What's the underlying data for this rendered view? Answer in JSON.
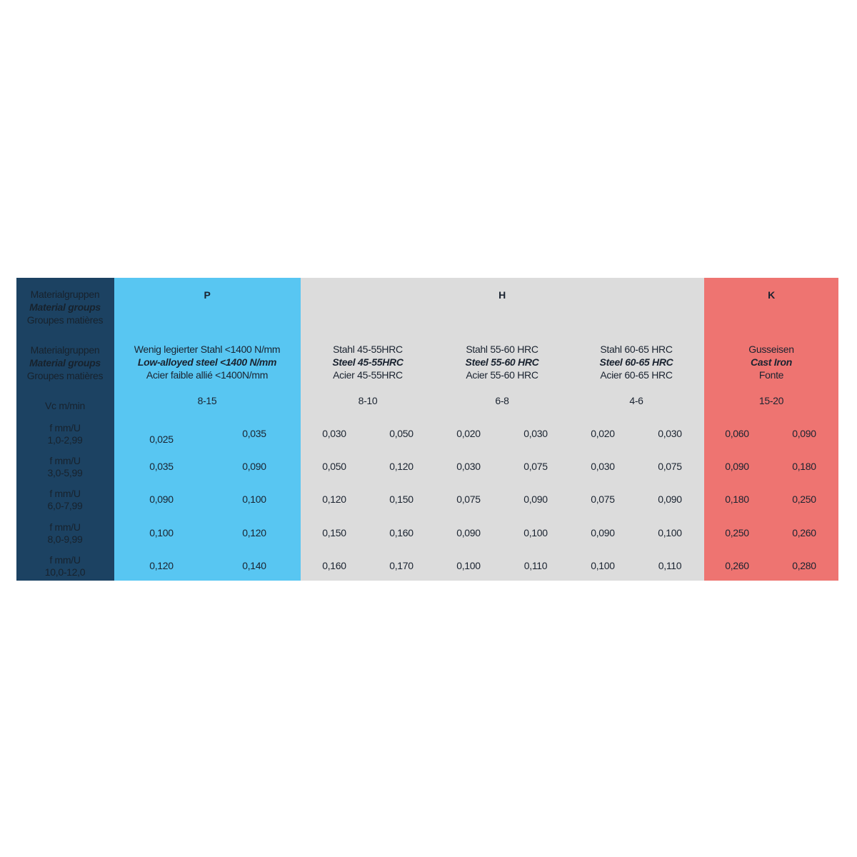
{
  "colors": {
    "label_column": "#1c4262",
    "P": "#58c6f2",
    "H": "#dcdcdc",
    "K": "#ee7471"
  },
  "labels": {
    "material_groups": [
      "Materialgruppen",
      "Material groups",
      "Groupes matières"
    ],
    "vc": "Vc m/min",
    "feed_rows": [
      {
        "unit": "f mm/U",
        "range": "1,0-2,99"
      },
      {
        "unit": "f mm/U",
        "range": "3,0-5,99"
      },
      {
        "unit": "f mm/U",
        "range": "6,0-7,99"
      },
      {
        "unit": "f mm/U",
        "range": "8,0-9,99"
      },
      {
        "unit": "f mm/U",
        "range": "10,0-12,0"
      }
    ]
  },
  "groups": [
    {
      "code": "P",
      "de": "Wenig legierter Stahl <1400 N/mm",
      "en": "Low-alloyed steel  <1400 N/mm",
      "fr": "Acier faible allié <1400N/mm",
      "vc": "8-15",
      "values": [
        [
          "0,025",
          "0,035"
        ],
        [
          "0,035",
          "0,090"
        ],
        [
          "0,090",
          "0,100"
        ],
        [
          "0,100",
          "0,120"
        ],
        [
          "0,120",
          "0,140"
        ]
      ]
    },
    {
      "code": "H",
      "de": "Stahl 45-55HRC",
      "en": "Steel 45-55HRC",
      "fr": "Acier 45-55HRC",
      "vc": "8-10",
      "values": [
        [
          "0,030",
          "0,050"
        ],
        [
          "0,050",
          "0,120"
        ],
        [
          "0,120",
          "0,150"
        ],
        [
          "0,150",
          "0,160"
        ],
        [
          "0,160",
          "0,170"
        ]
      ]
    },
    {
      "code": "",
      "de": "Stahl 55-60 HRC",
      "en": "Steel 55-60 HRC",
      "fr": "Acier 55-60  HRC",
      "vc": "6-8",
      "values": [
        [
          "0,020",
          "0,030"
        ],
        [
          "0,030",
          "0,075"
        ],
        [
          "0,075",
          "0,090"
        ],
        [
          "0,090",
          "0,100"
        ],
        [
          "0,100",
          "0,110"
        ]
      ]
    },
    {
      "code": "",
      "de": "Stahl 60-65 HRC",
      "en": "Steel 60-65 HRC",
      "fr": "Acier 60-65  HRC",
      "vc": "4-6",
      "values": [
        [
          "0,020",
          "0,030"
        ],
        [
          "0,030",
          "0,075"
        ],
        [
          "0,075",
          "0,090"
        ],
        [
          "0,090",
          "0,100"
        ],
        [
          "0,100",
          "0,110"
        ]
      ]
    },
    {
      "code": "K",
      "de": "Gusseisen",
      "en": "Cast Iron",
      "fr": "Fonte",
      "vc": "15-20",
      "values": [
        [
          "0,060",
          "0,090"
        ],
        [
          "0,090",
          "0,180"
        ],
        [
          "0,180",
          "0,250"
        ],
        [
          "0,250",
          "0,260"
        ],
        [
          "0,260",
          "0,280"
        ]
      ]
    }
  ]
}
